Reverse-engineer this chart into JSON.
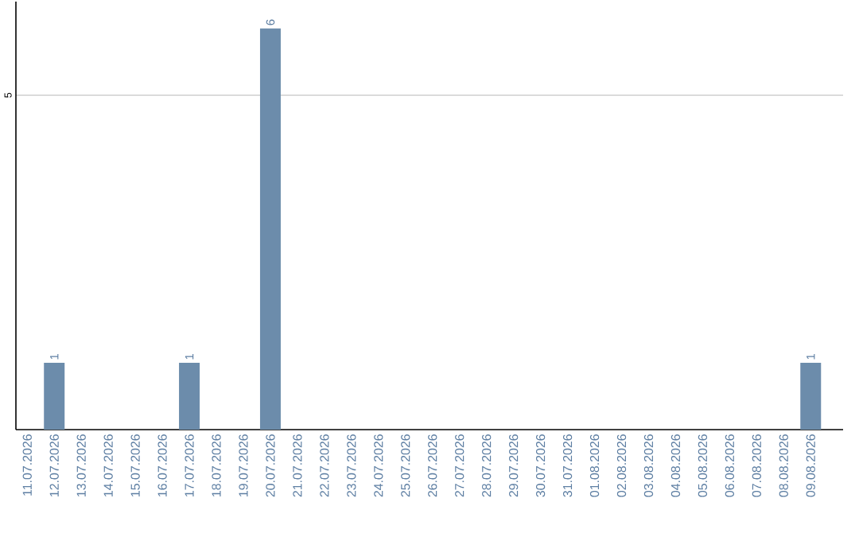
{
  "chart_data": {
    "type": "bar",
    "categories": [
      "11.07.2026",
      "12.07.2026",
      "13.07.2026",
      "14.07.2026",
      "15.07.2026",
      "16.07.2026",
      "17.07.2026",
      "18.07.2026",
      "19.07.2026",
      "20.07.2026",
      "21.07.2026",
      "22.07.2026",
      "23.07.2026",
      "24.07.2026",
      "25.07.2026",
      "26.07.2026",
      "27.07.2026",
      "28.07.2026",
      "29.07.2026",
      "30.07.2026",
      "31.07.2026",
      "01.08.2026",
      "02.08.2026",
      "03.08.2026",
      "04.08.2026",
      "05.08.2026",
      "06.08.2026",
      "07.08.2026",
      "08.08.2026",
      "09.08.2026"
    ],
    "values": [
      0,
      1,
      0,
      0,
      0,
      0,
      1,
      0,
      0,
      6,
      0,
      0,
      0,
      0,
      0,
      0,
      0,
      0,
      0,
      0,
      0,
      0,
      0,
      0,
      0,
      0,
      0,
      0,
      0,
      1
    ],
    "value_labels": [
      null,
      "1",
      null,
      null,
      null,
      null,
      "1",
      null,
      null,
      "6",
      null,
      null,
      null,
      null,
      null,
      null,
      null,
      null,
      null,
      null,
      null,
      null,
      null,
      null,
      null,
      null,
      null,
      null,
      null,
      "1"
    ],
    "color": "#6c8cab",
    "ylim": [
      0,
      6.4
    ],
    "yticks": [
      5
    ],
    "grid": "y"
  }
}
